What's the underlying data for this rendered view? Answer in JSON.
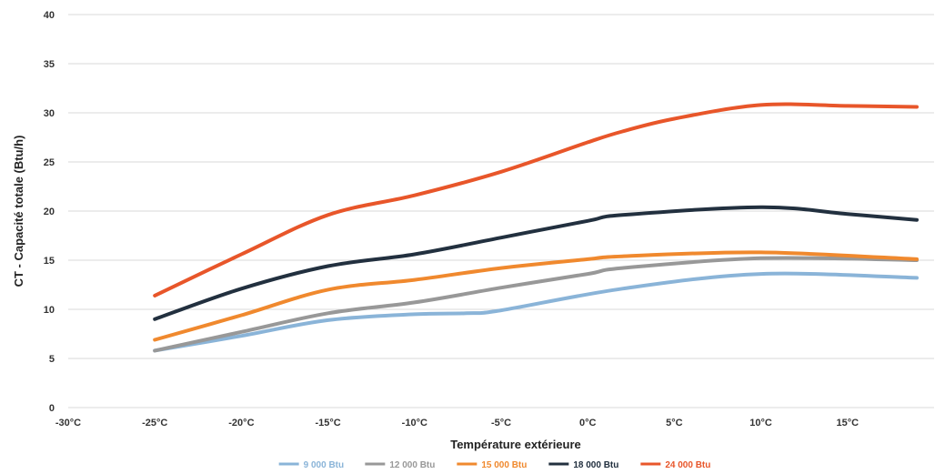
{
  "chart_data": {
    "type": "line",
    "title": "",
    "xlabel": "Température extérieure",
    "ylabel": "CT - Capacité totale (Btu/h)",
    "xlim": [
      -30,
      20
    ],
    "ylim": [
      0,
      40
    ],
    "xticks": [
      -30,
      -25,
      -20,
      -15,
      -10,
      -5,
      0,
      5,
      10,
      15
    ],
    "xtick_labels": [
      "-30°C",
      "-25°C",
      "-20°C",
      "-15°C",
      "-10°C",
      "-5°C",
      "0°C",
      "5°C",
      "10°C",
      "15°C"
    ],
    "yticks": [
      0,
      5,
      10,
      15,
      20,
      25,
      30,
      35,
      40
    ],
    "ytick_labels": [
      "0",
      "5",
      "10",
      "15",
      "20",
      "25",
      "30",
      "35",
      "40"
    ],
    "grid": "horizontal",
    "legend_position": "bottom",
    "series": [
      {
        "name": "9 000 Btu",
        "color": "#8ab4d8",
        "x": [
          -25,
          -20,
          -15,
          -10,
          -7,
          -5,
          2,
          10,
          19
        ],
        "y": [
          5.8,
          7.3,
          8.9,
          9.5,
          9.6,
          9.9,
          12.1,
          13.6,
          13.2
        ]
      },
      {
        "name": "12 000 Btu",
        "color": "#989898",
        "x": [
          -25,
          -20,
          -15,
          -10,
          -5,
          0,
          2,
          10,
          19
        ],
        "y": [
          5.8,
          7.7,
          9.6,
          10.7,
          12.2,
          13.6,
          14.2,
          15.2,
          15.0
        ]
      },
      {
        "name": "15 000 Btu",
        "color": "#f0892e",
        "x": [
          -25,
          -20,
          -15,
          -10,
          -5,
          0,
          2,
          10,
          19
        ],
        "y": [
          6.9,
          9.4,
          12.0,
          13.0,
          14.2,
          15.1,
          15.4,
          15.8,
          15.1
        ]
      },
      {
        "name": "18 000 Btu",
        "color": "#22303f",
        "x": [
          -25,
          -20,
          -15,
          -10,
          -5,
          0,
          2,
          10,
          15,
          19
        ],
        "y": [
          9.0,
          12.1,
          14.4,
          15.6,
          17.3,
          19.0,
          19.6,
          20.4,
          19.7,
          19.1
        ]
      },
      {
        "name": "24 000 Btu",
        "color": "#e8562a",
        "x": [
          -25,
          -20,
          -15,
          -10,
          -5,
          0,
          2,
          5,
          10,
          15,
          19
        ],
        "y": [
          11.4,
          15.6,
          19.6,
          21.6,
          24.0,
          27.0,
          28.1,
          29.4,
          30.8,
          30.7,
          30.6
        ]
      }
    ]
  }
}
